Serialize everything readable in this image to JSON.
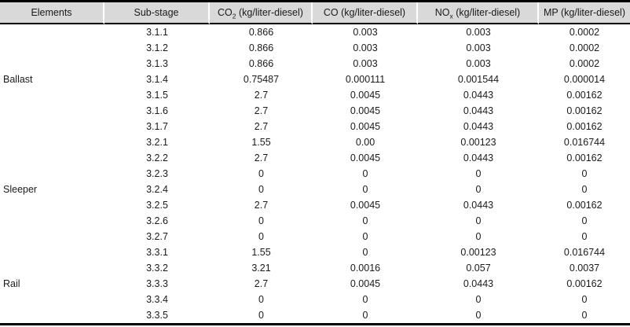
{
  "colors": {
    "header_background": "#d9d9d9",
    "rule": "#000000",
    "text": "#1a1a1a",
    "header_separator": "#ffffff"
  },
  "chart_data": {
    "type": "table",
    "title": "",
    "columns": [
      {
        "key": "elements",
        "base": "Elements",
        "sub": "",
        "unit": ""
      },
      {
        "key": "sub-stage",
        "base": "Sub-stage",
        "sub": "",
        "unit": ""
      },
      {
        "key": "co2",
        "base": "CO",
        "sub": "2",
        "unit": " (kg/liter-diesel)"
      },
      {
        "key": "co",
        "base": "CO",
        "sub": "",
        "unit": " (kg/liter-diesel)"
      },
      {
        "key": "nox",
        "base": "NO",
        "sub": "x",
        "unit": " (kg/liter-diesel)"
      },
      {
        "key": "mp",
        "base": "MP",
        "sub": "",
        "unit": " (kg/liter-diesel)"
      }
    ],
    "groups": [
      {
        "element": "Ballast",
        "rows": [
          [
            "3.1.1",
            "0.866",
            "0.003",
            "0.003",
            "0.0002"
          ],
          [
            "3.1.2",
            "0.866",
            "0.003",
            "0.003",
            "0.0002"
          ],
          [
            "3.1.3",
            "0.866",
            "0.003",
            "0.003",
            "0.0002"
          ],
          [
            "3.1.4",
            "0.75487",
            "0.000111",
            "0.001544",
            "0.000014"
          ],
          [
            "3.1.5",
            "2.7",
            "0.0045",
            "0.0443",
            "0.00162"
          ],
          [
            "3.1.6",
            "2.7",
            "0.0045",
            "0.0443",
            "0.00162"
          ],
          [
            "3.1.7",
            "2.7",
            "0.0045",
            "0.0443",
            "0.00162"
          ]
        ]
      },
      {
        "element": "Sleeper",
        "rows": [
          [
            "3.2.1",
            "1.55",
            "0.00",
            "0.00123",
            "0.016744"
          ],
          [
            "3.2.2",
            "2.7",
            "0.0045",
            "0.0443",
            "0.00162"
          ],
          [
            "3.2.3",
            "0",
            "0",
            "0",
            "0"
          ],
          [
            "3.2.4",
            "0",
            "0",
            "0",
            "0"
          ],
          [
            "3.2.5",
            "2.7",
            "0.0045",
            "0.0443",
            "0.00162"
          ],
          [
            "3.2.6",
            "0",
            "0",
            "0",
            "0"
          ],
          [
            "3.2.7",
            "0",
            "0",
            "0",
            "0"
          ]
        ]
      },
      {
        "element": "Rail",
        "rows": [
          [
            "3.3.1",
            "1.55",
            "0",
            "0.00123",
            "0.016744"
          ],
          [
            "3.3.2",
            "3.21",
            "0.0016",
            "0.057",
            "0.0037"
          ],
          [
            "3.3.3",
            "2.7",
            "0.0045",
            "0.0443",
            "0.00162"
          ],
          [
            "3.3.4",
            "0",
            "0",
            "0",
            "0"
          ],
          [
            "3.3.5",
            "0",
            "0",
            "0",
            "0"
          ]
        ]
      }
    ]
  }
}
